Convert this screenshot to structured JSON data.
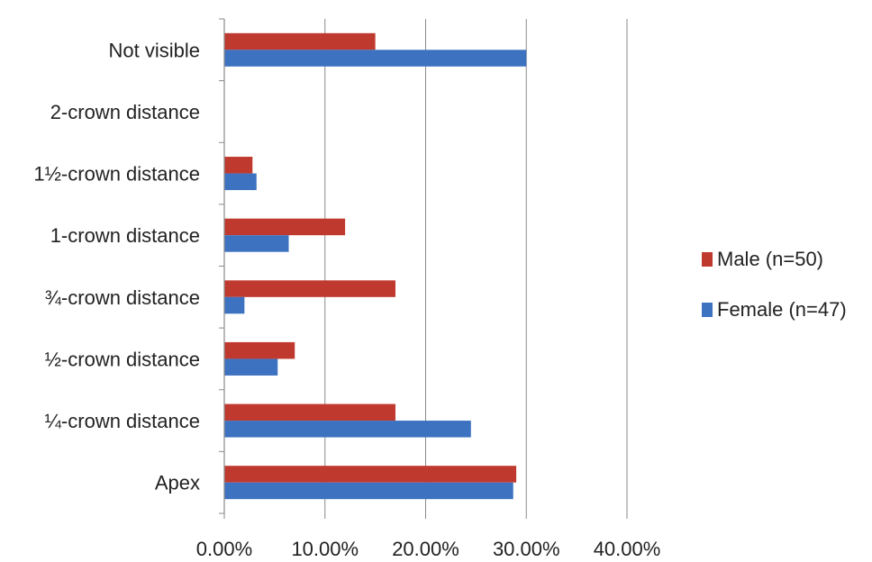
{
  "chart_data": {
    "type": "bar",
    "orientation": "horizontal",
    "title": "",
    "xlabel": "",
    "ylabel": "",
    "categories": [
      "Not visible",
      "2-crown distance",
      "1½-crown distance",
      "1-crown distance",
      "¾-crown distance",
      "½-crown distance",
      "¼-crown distance",
      "Apex"
    ],
    "series": [
      {
        "name": "Male (n=50)",
        "color": "#c0392e",
        "values": [
          15.0,
          0.0,
          2.8,
          12.0,
          17.0,
          7.0,
          17.0,
          29.0
        ]
      },
      {
        "name": "Female (n=47)",
        "color": "#3d72c0",
        "values": [
          30.0,
          0.0,
          3.2,
          6.4,
          2.0,
          5.3,
          24.5,
          28.7
        ]
      }
    ],
    "x_ticks": [
      "0.00%",
      "10.00%",
      "20.00%",
      "30.00%",
      "40.00%"
    ],
    "xlim": [
      0,
      40
    ],
    "unit": "percent",
    "grid": "vertical",
    "legend_position": "right"
  }
}
